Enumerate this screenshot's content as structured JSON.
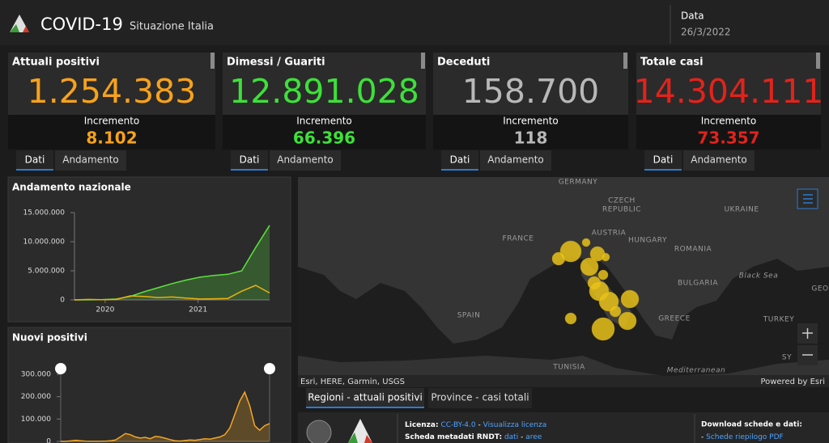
{
  "header": {
    "title": "COVID-19",
    "subtitle": "Situazione Italia",
    "date_label": "Data",
    "date": "26/3/2022"
  },
  "cards": [
    {
      "title": "Attuali positivi",
      "value": "1.254.383",
      "increment_label": "Incremento",
      "increment": "8.102",
      "color": "#f7a21b"
    },
    {
      "title": "Dimessi / Guariti",
      "value": "12.891.028",
      "increment_label": "Incremento",
      "increment": "66.396",
      "color": "#3ee03a"
    },
    {
      "title": "Deceduti",
      "value": "158.700",
      "increment_label": "Incremento",
      "increment": "118",
      "color": "#b8b8b8"
    },
    {
      "title": "Totale casi",
      "value": "14.304.111",
      "increment_label": "Incremento",
      "increment": "73.357",
      "color": "#e0231c"
    }
  ],
  "tabs": [
    "Dati",
    "Andamento"
  ],
  "chart_data": [
    {
      "type": "line",
      "title": "Andamento nazionale",
      "x": [
        2019.67,
        2019.82,
        2019.97,
        2020.12,
        2020.27,
        2020.42,
        2020.57,
        2020.72,
        2020.87,
        2021.02,
        2021.17,
        2021.32,
        2021.47,
        2021.62,
        2021.77
      ],
      "series": [
        {
          "color": "#5be33e",
          "area": true,
          "values": [
            0,
            10000,
            60000,
            150000,
            600000,
            1400000,
            2100000,
            2800000,
            3400000,
            3900000,
            4200000,
            4400000,
            5000000,
            9000000,
            12800000
          ]
        },
        {
          "color": "#e8b10e",
          "area": false,
          "values": [
            0,
            90000,
            40000,
            80000,
            700000,
            600000,
            400000,
            500000,
            300000,
            150000,
            200000,
            250000,
            1500000,
            2500000,
            1200000
          ]
        }
      ],
      "xlim": [
        2019.67,
        2021.77
      ],
      "xticks": [
        2020,
        2021
      ],
      "ylim": [
        0,
        15000000
      ],
      "yticks": [
        0,
        {
          "value": 5000000,
          "label": "5.000.000"
        },
        {
          "value": 10000000,
          "label": "10.000.000"
        },
        {
          "value": 15000000,
          "label": "15.000.000"
        }
      ],
      "grid": false
    },
    {
      "type": "area",
      "title": "Nuovi positivi",
      "x": [
        2019.67,
        2019.72,
        2019.77,
        2019.82,
        2019.87,
        2019.92,
        2019.97,
        2020.02,
        2020.07,
        2020.12,
        2020.17,
        2020.22,
        2020.27,
        2020.32,
        2020.37,
        2020.42,
        2020.47,
        2020.52,
        2020.57,
        2020.62,
        2020.67,
        2020.72,
        2020.77,
        2020.82,
        2020.87,
        2020.92,
        2020.97,
        2021.02,
        2021.07,
        2021.12,
        2021.17,
        2021.22,
        2021.27,
        2021.32,
        2021.37,
        2021.42,
        2021.47,
        2021.52,
        2021.57,
        2021.62,
        2021.67,
        2021.72,
        2021.77
      ],
      "series": [
        {
          "color": "#f5a623",
          "area": true,
          "values": [
            0,
            100,
            2000,
            5000,
            3000,
            1000,
            300,
            200,
            300,
            1200,
            2500,
            6000,
            20000,
            35000,
            30000,
            20000,
            15000,
            18000,
            12000,
            22000,
            20000,
            14000,
            8000,
            3000,
            1500,
            4000,
            6000,
            5000,
            8000,
            12000,
            10000,
            15000,
            20000,
            30000,
            60000,
            120000,
            180000,
            220000,
            160000,
            70000,
            50000,
            70000,
            80000
          ]
        }
      ],
      "xlim": [
        2019.67,
        2021.77
      ],
      "ylim": [
        0,
        300000
      ],
      "yticks": [
        0,
        {
          "value": 100000,
          "label": "100.000"
        },
        {
          "value": 200000,
          "label": "200.000"
        },
        {
          "value": 300000,
          "label": "300.000"
        }
      ],
      "grid": false
    }
  ],
  "map": {
    "labels": [
      "GERMANY",
      "CZECH",
      "REPUBLIC",
      "UKRAINE",
      "FRANCE",
      "AUSTRIA",
      "HUNGARY",
      "ROMANIA",
      "Black Sea",
      "BULGARIA",
      "SPAIN",
      "GREECE",
      "TURKEY",
      "TUNISIA",
      "Mediterranean",
      "SY",
      "GEO"
    ],
    "attribution": "Esri, HERE, Garmin, USGS",
    "powered": "Powered by Esri"
  },
  "map_tabs": [
    "Regioni - attuali positivi",
    "Province - casi totali"
  ],
  "footer": {
    "license_label": "Licenza:",
    "license": "CC-BY-4.0",
    "separator": "-",
    "license_link": "Visualizza licenza",
    "metadata_label": "Scheda metadati RNDT:",
    "metadata_links": [
      "dati",
      "aree"
    ],
    "download_label": "Download schede e dati:",
    "download_link": "Schede riepilogo PDF"
  }
}
